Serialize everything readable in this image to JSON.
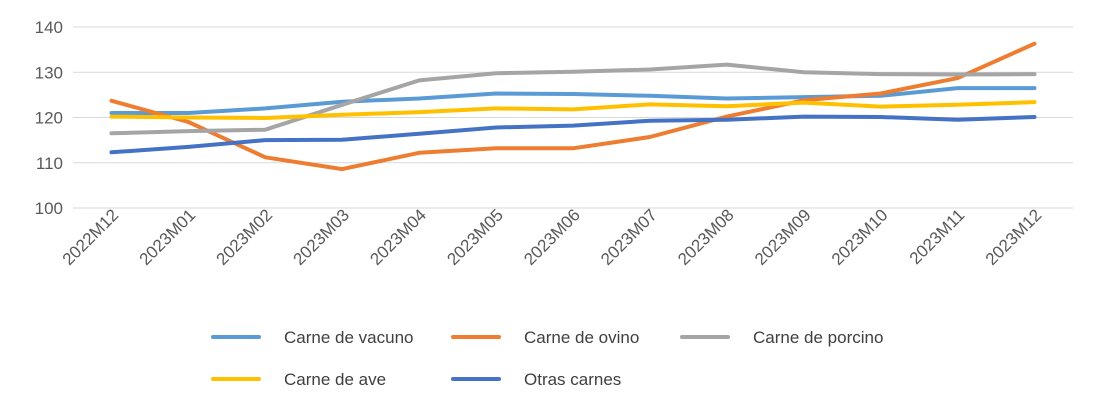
{
  "chart_data": {
    "type": "line",
    "title": "",
    "xlabel": "",
    "ylabel": "",
    "ylim": [
      100,
      140
    ],
    "yticks": [
      100,
      110,
      120,
      130,
      140
    ],
    "grid": true,
    "legend_position": "bottom",
    "categories": [
      "2022M12",
      "2023M01",
      "2023M02",
      "2023M03",
      "2023M04",
      "2023M05",
      "2023M06",
      "2023M07",
      "2023M08",
      "2023M09",
      "2023M10",
      "2023M11",
      "2023M12"
    ],
    "series": [
      {
        "name": "Carne de vacuno",
        "color": "#5B9BD5",
        "values": [
          121.0,
          121.0,
          122.0,
          123.5,
          124.2,
          125.3,
          125.2,
          124.8,
          124.2,
          124.5,
          124.8,
          126.5,
          126.5
        ]
      },
      {
        "name": "Carne de ovino",
        "color": "#ED7D31",
        "values": [
          123.7,
          119.0,
          111.2,
          108.6,
          112.2,
          113.2,
          113.2,
          115.7,
          120.2,
          123.8,
          125.3,
          128.7,
          136.3
        ]
      },
      {
        "name": "Carne de porcino",
        "color": "#A5A5A5",
        "values": [
          116.5,
          117.0,
          117.3,
          122.8,
          128.2,
          129.8,
          130.1,
          130.6,
          131.7,
          130.0,
          129.6,
          129.5,
          129.6
        ]
      },
      {
        "name": "Carne de ave",
        "color": "#FFC000",
        "values": [
          120.2,
          120.0,
          119.9,
          120.6,
          121.2,
          122.0,
          121.8,
          122.9,
          122.5,
          123.3,
          122.4,
          122.8,
          123.4
        ]
      },
      {
        "name": "Otras carnes",
        "color": "#4472C4",
        "values": [
          112.3,
          113.5,
          115.0,
          115.1,
          116.4,
          117.8,
          118.2,
          119.3,
          119.5,
          120.2,
          120.1,
          119.5,
          120.1
        ]
      }
    ]
  }
}
